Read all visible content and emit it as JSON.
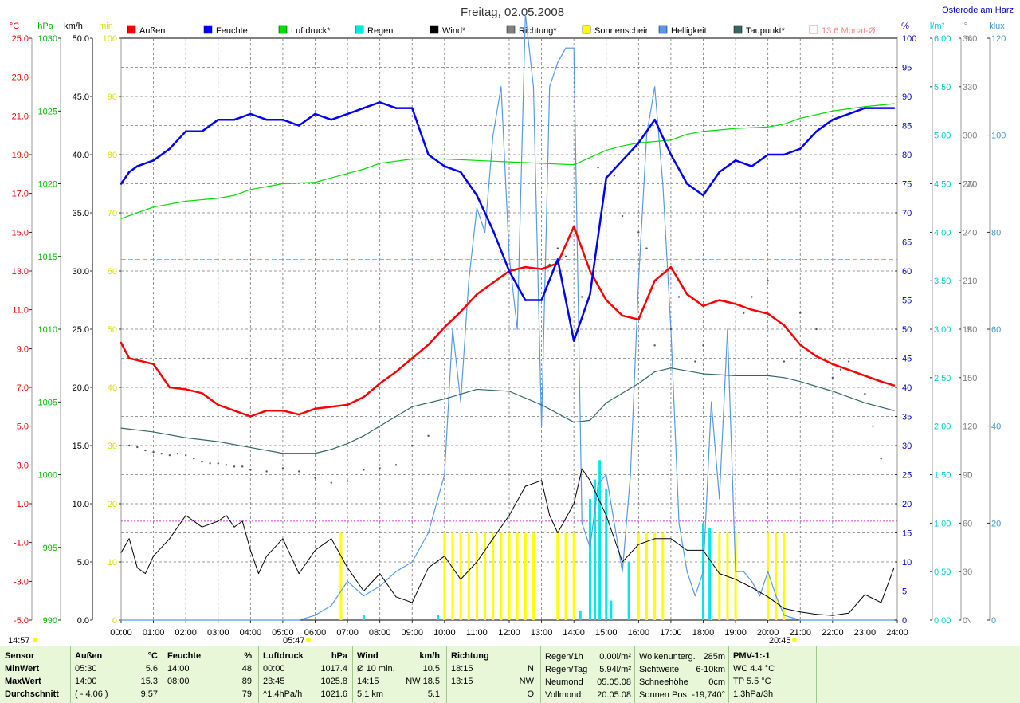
{
  "chart_data": {
    "type": "line",
    "title": "Freitag, 02.05.2008",
    "location": "Osterode am Harz",
    "x_ticks": [
      "00:00",
      "01:00",
      "02:00",
      "03:00",
      "04:00",
      "05:00",
      "06:00",
      "07:00",
      "08:00",
      "09:00",
      "10:00",
      "11:00",
      "12:00",
      "13:00",
      "14:00",
      "15:00",
      "16:00",
      "17:00",
      "18:00",
      "19:00",
      "20:00",
      "21:00",
      "22:00",
      "23:00",
      "24:00"
    ],
    "x_range": [
      0,
      24
    ],
    "grid": true,
    "legend": [
      {
        "name": "Außen",
        "color": "#ff0000"
      },
      {
        "name": "Feuchte",
        "color": "#0000ff"
      },
      {
        "name": "Luftdruck*",
        "color": "#00dd00"
      },
      {
        "name": "Regen",
        "color": "#00e8e8"
      },
      {
        "name": "Wind*",
        "color": "#000000"
      },
      {
        "name": "Richtung*",
        "color": "#808080"
      },
      {
        "name": "Sonnenschein",
        "color": "#ffff00"
      },
      {
        "name": "Helligkeit",
        "color": "#5599ee"
      },
      {
        "name": "Taupunkt*",
        "color": "#336666"
      },
      {
        "name": "13.6 Monat-Ø",
        "color": "#ff8080",
        "outline": true
      }
    ],
    "axes": {
      "temp": {
        "unit": "°C",
        "color": "#ff0000",
        "range": [
          -5,
          25
        ],
        "ticks": [
          "25.0",
          "23.0",
          "21.0",
          "19.0",
          "17.0",
          "15.0",
          "13.0",
          "11.0",
          "9.0",
          "7.0",
          "5.0",
          "3.0",
          "1.0",
          "-1.0",
          "-3.0",
          "-5.0"
        ]
      },
      "pressure": {
        "unit": "hPa",
        "color": "#00bb00",
        "range": [
          990,
          1030
        ],
        "ticks": [
          "1030",
          "1025",
          "1020",
          "1015",
          "1010",
          "1005",
          "1000",
          "995",
          "990"
        ]
      },
      "wind": {
        "unit": "km/h",
        "color": "#000000",
        "range": [
          0,
          50
        ],
        "ticks": [
          "50.0",
          "45.0",
          "40.0",
          "35.0",
          "30.0",
          "25.0",
          "20.0",
          "15.0",
          "10.0",
          "5.0",
          "0.0"
        ]
      },
      "sun": {
        "unit": "min",
        "color": "#dddd00",
        "range": [
          0,
          100
        ],
        "ticks": [
          "100",
          "90",
          "80",
          "70",
          "60",
          "50",
          "40",
          "30",
          "20",
          "10",
          "0"
        ]
      },
      "humidity": {
        "unit": "%",
        "color": "#0000cc",
        "range": [
          0,
          100
        ],
        "ticks": [
          "100",
          "95",
          "90",
          "85",
          "80",
          "75",
          "70",
          "65",
          "60",
          "55",
          "50",
          "45",
          "40",
          "35",
          "30",
          "25",
          "20",
          "15",
          "10",
          "5",
          "0"
        ]
      },
      "rain": {
        "unit": "l/m²",
        "color": "#00cccc",
        "range": [
          0,
          6
        ],
        "ticks": [
          "6.00",
          "5.50",
          "5.00",
          "4.50",
          "4.00",
          "3.50",
          "3.00",
          "2.50",
          "2.00",
          "1.50",
          "1.00",
          "0.50",
          "0.00"
        ]
      },
      "direction": {
        "unit": "°",
        "color": "#808080",
        "range": [
          0,
          360
        ],
        "ticks": [
          "360",
          "330",
          "300",
          "270",
          "240",
          "210",
          "180",
          "150",
          "120",
          "90",
          "60",
          "30",
          "0"
        ],
        "compass": {
          "360": "N",
          "270": "W",
          "180": "S",
          "90": "O",
          "0": "N"
        }
      },
      "light": {
        "unit": "klux",
        "color": "#4499cc",
        "range": [
          0,
          120
        ],
        "ticks": [
          "120",
          "100",
          "80",
          "60",
          "40",
          "20",
          "0"
        ]
      }
    },
    "monthly_avg_temp": 13.6,
    "sun_ref_level_min": 17,
    "series": [
      {
        "name": "Außen",
        "axis": "temp",
        "x": [
          0,
          0.25,
          0.5,
          1,
          1.5,
          2,
          2.5,
          3,
          3.5,
          4,
          4.5,
          5,
          5.5,
          6,
          6.5,
          7,
          7.5,
          8,
          8.5,
          9,
          9.5,
          10,
          10.5,
          11,
          11.5,
          12,
          12.5,
          13,
          13.5,
          14,
          14.5,
          15,
          15.5,
          16,
          16.5,
          17,
          17.5,
          18,
          18.5,
          19,
          19.5,
          20,
          20.5,
          21,
          21.5,
          22,
          22.5,
          23,
          23.5,
          23.9
        ],
        "values": [
          9.3,
          8.5,
          8.4,
          8.2,
          7.0,
          6.9,
          6.7,
          6.1,
          5.8,
          5.5,
          5.8,
          5.8,
          5.6,
          5.9,
          6.0,
          6.1,
          6.5,
          7.2,
          7.8,
          8.5,
          9.2,
          10.1,
          10.9,
          11.8,
          12.4,
          13.0,
          13.2,
          13.1,
          13.4,
          15.3,
          13.0,
          11.5,
          10.7,
          10.5,
          12.5,
          13.2,
          11.8,
          11.2,
          11.5,
          11.3,
          11.0,
          10.8,
          10.2,
          9.2,
          8.6,
          8.2,
          7.9,
          7.6,
          7.3,
          7.1
        ]
      },
      {
        "name": "Feuchte",
        "axis": "humidity",
        "x": [
          0,
          0.25,
          0.5,
          1,
          1.5,
          2,
          2.5,
          3,
          3.5,
          4,
          4.5,
          5,
          5.5,
          6,
          6.5,
          7,
          7.5,
          8,
          8.5,
          9,
          9.5,
          10,
          10.5,
          11,
          11.5,
          12,
          12.5,
          13,
          13.5,
          14,
          14.5,
          15,
          15.5,
          16,
          16.5,
          17,
          17.5,
          18,
          18.5,
          19,
          19.5,
          20,
          20.5,
          21,
          21.5,
          22,
          22.5,
          23,
          23.5,
          23.9
        ],
        "values": [
          75,
          77,
          78,
          79,
          81,
          84,
          84,
          86,
          86,
          87,
          86,
          86,
          85,
          87,
          86,
          87,
          88,
          89,
          88,
          88,
          80,
          78,
          77,
          73,
          67,
          60,
          55,
          55,
          62,
          48,
          56,
          76,
          79,
          82,
          86,
          80,
          75,
          73,
          77,
          79,
          78,
          80,
          80,
          81,
          84,
          86,
          87,
          88,
          88,
          88
        ]
      },
      {
        "name": "Luftdruck*",
        "axis": "pressure",
        "x": [
          0,
          0.5,
          1,
          2,
          3,
          3.5,
          4,
          4.5,
          5,
          6,
          6.5,
          7,
          7.5,
          8,
          9,
          10,
          11,
          12,
          13,
          14,
          14.5,
          15,
          15.5,
          16,
          17,
          17.5,
          18,
          19,
          20,
          20.5,
          21,
          22,
          23,
          23.9
        ],
        "values": [
          1017.6,
          1018.0,
          1018.4,
          1018.8,
          1019.0,
          1019.2,
          1019.6,
          1019.8,
          1020.0,
          1020.1,
          1020.4,
          1020.7,
          1021.0,
          1021.4,
          1021.7,
          1021.7,
          1021.6,
          1021.5,
          1021.4,
          1021.3,
          1021.8,
          1022.3,
          1022.6,
          1022.8,
          1023.0,
          1023.4,
          1023.6,
          1023.8,
          1023.9,
          1024.1,
          1024.5,
          1025.0,
          1025.3,
          1025.5
        ]
      },
      {
        "name": "Taupunkt*",
        "axis": "temp",
        "x": [
          0,
          1,
          2,
          3,
          4,
          5,
          6,
          6.5,
          7,
          7.5,
          8,
          9,
          10,
          11,
          12,
          13,
          14,
          14.5,
          15,
          16,
          16.5,
          17,
          18,
          19,
          20,
          20.5,
          21,
          22,
          23,
          23.9
        ],
        "values": [
          4.9,
          4.7,
          4.4,
          4.2,
          3.9,
          3.6,
          3.6,
          3.8,
          4.1,
          4.5,
          5.0,
          6.0,
          6.4,
          6.9,
          6.8,
          6.1,
          5.2,
          5.3,
          6.2,
          7.2,
          7.8,
          8.0,
          7.7,
          7.6,
          7.6,
          7.5,
          7.3,
          6.8,
          6.2,
          5.8
        ]
      },
      {
        "name": "Wind*",
        "axis": "wind",
        "x": [
          0,
          0.25,
          0.5,
          0.75,
          1,
          1.5,
          2,
          2.5,
          3,
          3.25,
          3.5,
          3.75,
          4,
          4.25,
          4.5,
          5,
          5.5,
          6,
          6.5,
          7,
          7.5,
          8,
          8.5,
          9,
          9.5,
          10,
          10.5,
          11,
          11.5,
          12,
          12.5,
          13,
          13.25,
          13.5,
          14,
          14.25,
          14.5,
          15,
          15.5,
          16,
          16.5,
          17,
          17.5,
          18,
          18.5,
          19,
          19.5,
          20,
          20.5,
          21,
          21.5,
          22,
          22.5,
          23,
          23.5,
          23.9
        ],
        "values": [
          5.8,
          7,
          4.5,
          4,
          5.5,
          7,
          9,
          8,
          8.5,
          9,
          8,
          8.5,
          6,
          4,
          5.5,
          7,
          4,
          6,
          7,
          4.5,
          2.5,
          4,
          2,
          1.5,
          4.5,
          5.5,
          3.5,
          5,
          7,
          9,
          11.5,
          12,
          9,
          7.5,
          10,
          13,
          12,
          9,
          5,
          6.5,
          7,
          7,
          6,
          6,
          4,
          3.5,
          2.8,
          2,
          1,
          0.7,
          0.5,
          0.4,
          0.6,
          2.2,
          1.5,
          4.5
        ]
      },
      {
        "name": "Helligkeit",
        "axis": "light",
        "x": [
          0,
          5.5,
          6,
          6.5,
          7,
          7.5,
          8,
          8.5,
          9,
          9.5,
          10,
          10.25,
          10.5,
          10.75,
          11,
          11.25,
          11.5,
          11.75,
          12,
          12.25,
          12.5,
          12.75,
          13,
          13.25,
          13.5,
          13.75,
          14,
          14.25,
          14.5,
          14.75,
          15,
          15.25,
          15.5,
          15.75,
          16,
          16.25,
          16.5,
          16.75,
          17,
          17.25,
          17.5,
          17.75,
          18,
          18.25,
          18.5,
          18.75,
          19,
          19.25,
          19.5,
          19.75,
          20,
          20.25,
          20.5,
          21,
          21.5,
          22,
          23,
          23.9
        ],
        "values": [
          0,
          0,
          1,
          3,
          8,
          5,
          7,
          10,
          12,
          18,
          30,
          60,
          45,
          70,
          85,
          80,
          100,
          110,
          75,
          60,
          125,
          110,
          40,
          110,
          115,
          118,
          118,
          20,
          15,
          28,
          30,
          20,
          10,
          30,
          70,
          100,
          110,
          90,
          60,
          20,
          10,
          5,
          10,
          45,
          25,
          60,
          10,
          10,
          8,
          5,
          10,
          5,
          1,
          0,
          0,
          0,
          0,
          0
        ]
      },
      {
        "name": "Regen",
        "axis": "rain",
        "type": "bars",
        "x": [
          7.5,
          9.8,
          14.2,
          14.5,
          14.65,
          14.8,
          15.0,
          15.15,
          15.7,
          18.0,
          18.2
        ],
        "values": [
          0.05,
          0.05,
          0.1,
          1.25,
          1.45,
          1.65,
          1.35,
          0.2,
          0.6,
          1.0,
          0.95
        ]
      },
      {
        "name": "Sonnenschein",
        "axis": "sun",
        "type": "bars",
        "x": [
          6.8,
          10.0,
          10.25,
          10.5,
          10.75,
          11.0,
          11.25,
          11.5,
          11.75,
          12.0,
          12.25,
          12.5,
          12.75,
          13.5,
          13.75,
          14.0,
          16.0,
          16.25,
          16.5,
          16.75,
          18.25,
          18.5,
          18.75,
          19.0,
          20.0,
          20.25,
          20.5
        ],
        "values": [
          15,
          15,
          15,
          15,
          15,
          15,
          15,
          15,
          15,
          15,
          15,
          15,
          15,
          15,
          15,
          15,
          15,
          15,
          15,
          15,
          15,
          15,
          15,
          15,
          15,
          15,
          15
        ]
      },
      {
        "name": "Richtung*",
        "axis": "direction",
        "type": "scatter",
        "x": [
          0.25,
          0.5,
          0.75,
          1,
          1.25,
          1.5,
          1.75,
          2,
          2.25,
          2.5,
          2.75,
          3,
          3.25,
          3.5,
          3.75,
          4,
          4.5,
          5,
          5.5,
          6,
          6.5,
          7,
          7.5,
          8,
          8.5,
          9,
          9.5,
          13.25,
          13.5,
          13.75,
          14.25,
          14.5,
          14.75,
          15,
          15.25,
          15.5,
          16,
          16.25,
          16.5,
          17,
          17.25,
          17.75,
          18,
          19.25,
          19.5,
          20,
          20.5,
          21,
          21.5,
          22,
          22.25,
          22.5,
          23,
          23.25,
          23.5
        ],
        "values": [
          108,
          107,
          105,
          104,
          103,
          102,
          103,
          102,
          100,
          98,
          97,
          97,
          96,
          95,
          95,
          93,
          92,
          94,
          92,
          88,
          85,
          86,
          93,
          94,
          96,
          108,
          114,
          220,
          230,
          225,
          200,
          270,
          280,
          270,
          275,
          250,
          240,
          230,
          170,
          180,
          200,
          160,
          170,
          190,
          200,
          210,
          160,
          190,
          180,
          150,
          155,
          160,
          140,
          120,
          100
        ]
      }
    ]
  },
  "markers": {
    "left_time": "14:57",
    "sunrise": "05:47",
    "sunset": "20:45"
  },
  "stats": {
    "row_labels": [
      "Sensor",
      "MinWert",
      "MaxWert",
      "Durchschnitt"
    ],
    "aussen": {
      "title": "Außen",
      "unit": "°C",
      "rows": [
        [
          "05:30",
          "5.6"
        ],
        [
          "14:00",
          "15.3"
        ],
        [
          "( - 4.06 )",
          "9.57"
        ]
      ]
    },
    "feuchte": {
      "title": "Feuchte",
      "unit": "%",
      "rows": [
        [
          "14:00",
          "48"
        ],
        [
          "08:00",
          "89"
        ],
        [
          "",
          "79"
        ]
      ]
    },
    "luftdruck": {
      "title": "Luftdruck",
      "unit": "hPa",
      "rows": [
        [
          "00:00",
          "1017.4"
        ],
        [
          "23:45",
          "1025.8"
        ],
        [
          "^1.4hPa/h",
          "1021.6"
        ]
      ]
    },
    "wind": {
      "title": "Wind",
      "unit": "km/h",
      "rows": [
        [
          "Ø 10 min.",
          "10.5"
        ],
        [
          "14:15",
          "NW 18.5"
        ],
        [
          "5,1 km",
          "5.1"
        ]
      ]
    },
    "richtung": {
      "title": "Richtung",
      "unit": "",
      "rows": [
        [
          "18:15",
          "N"
        ],
        [
          "13:15",
          "NW"
        ],
        [
          "",
          "O"
        ]
      ]
    },
    "rain": {
      "rows": [
        [
          "Regen/1h",
          "0.00l/m²"
        ],
        [
          "Regen/Tag",
          "5.94l/m²"
        ],
        [
          "Neumond",
          "05.05.08"
        ],
        [
          "Vollmond",
          "20.05.08"
        ]
      ]
    },
    "cloud": {
      "rows": [
        [
          "Wolkenunterg.",
          "285m"
        ],
        [
          "Sichtweite",
          "6-10km"
        ],
        [
          "Schneehöhe",
          "0cm"
        ],
        [
          "Sonnen Pos.",
          "-19,740°"
        ]
      ]
    },
    "pmv": {
      "title": "PMV-1:-1",
      "rows": [
        "WC 4.4 °C",
        "TP 5.5 °C",
        "1.3hPa/3h"
      ]
    }
  }
}
